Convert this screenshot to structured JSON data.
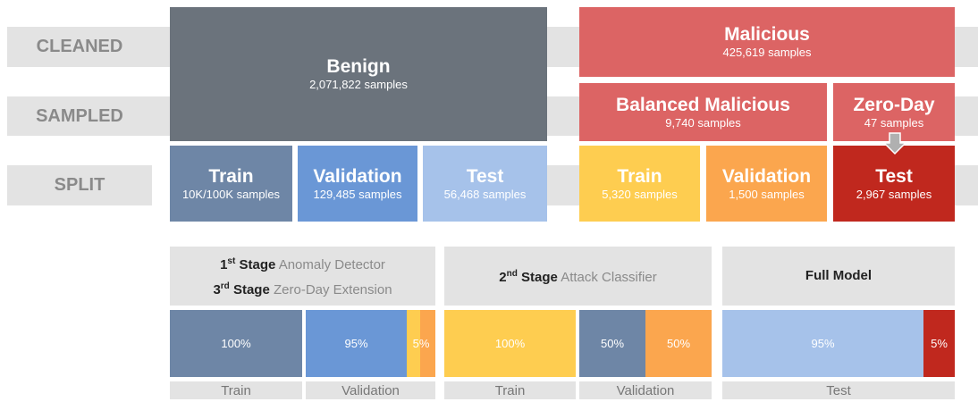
{
  "rows": [
    "CLEANED",
    "SAMPLED",
    "SPLIT"
  ],
  "benign": {
    "title": "Benign",
    "samples": "2,071,822 samples"
  },
  "malicious": {
    "title": "Malicious",
    "samples": "425,619 samples"
  },
  "balanced": {
    "title": "Balanced Malicious",
    "samples": "9,740 samples"
  },
  "zeroday": {
    "title": "Zero-Day",
    "samples": "47 samples"
  },
  "split": [
    {
      "title": "Train",
      "samples": "10K/100K samples"
    },
    {
      "title": "Validation",
      "samples": "129,485 samples"
    },
    {
      "title": "Test",
      "samples": "56,468 samples"
    },
    {
      "title": "Train",
      "samples": "5,320 samples"
    },
    {
      "title": "Validation",
      "samples": "1,500 samples"
    },
    {
      "title": "Test",
      "samples": "2,967 samples"
    }
  ],
  "panels": [
    {
      "headers": [
        {
          "num": "1",
          "suffix": "st",
          "stage": "Stage",
          "name": "Anomaly Detector"
        },
        {
          "num": "3",
          "suffix": "rd",
          "stage": "Stage",
          "name": "Zero-Day Extension"
        }
      ],
      "bars": [
        "100%",
        "95%",
        "5%"
      ],
      "labels": [
        "Train",
        "Validation"
      ]
    },
    {
      "headers": [
        {
          "num": "2",
          "suffix": "nd",
          "stage": "Stage",
          "name": "Attack Classifier"
        }
      ],
      "bars": [
        "100%",
        "50%",
        "50%"
      ],
      "labels": [
        "Train",
        "Validation"
      ]
    },
    {
      "headers": [
        {
          "name": "Full Model"
        }
      ],
      "bars": [
        "95%",
        "5%"
      ],
      "labels": [
        "Test"
      ]
    }
  ]
}
